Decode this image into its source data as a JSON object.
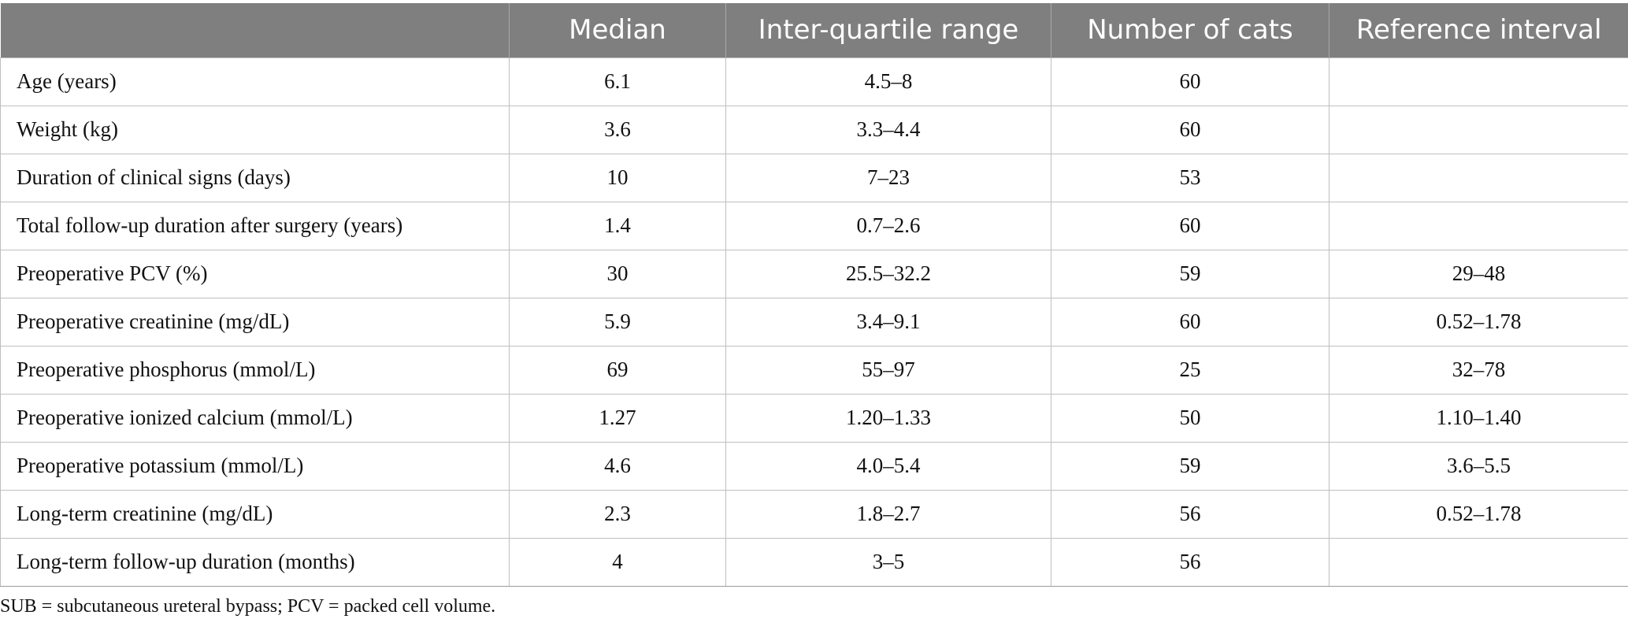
{
  "table": {
    "headers": [
      "",
      "Median",
      "Inter-quartile range",
      "Number of cats",
      "Reference interval"
    ],
    "rows": [
      [
        "Age (years)",
        "6.1",
        "4.5–8",
        "60",
        ""
      ],
      [
        "Weight (kg)",
        "3.6",
        "3.3–4.4",
        "60",
        ""
      ],
      [
        "Duration of clinical signs (days)",
        "10",
        "7–23",
        "53",
        ""
      ],
      [
        "Total follow-up duration after surgery (years)",
        "1.4",
        "0.7–2.6",
        "60",
        ""
      ],
      [
        "Preoperative PCV (%)",
        "30",
        "25.5–32.2",
        "59",
        "29–48"
      ],
      [
        "Preoperative creatinine (mg/dL)",
        "5.9",
        "3.4–9.1",
        "60",
        "0.52–1.78"
      ],
      [
        "Preoperative phosphorus (mmol/L)",
        "69",
        "55–97",
        "25",
        "32–78"
      ],
      [
        "Preoperative ionized calcium (mmol/L)",
        "1.27",
        "1.20–1.33",
        "50",
        "1.10–1.40"
      ],
      [
        "Preoperative potassium (mmol/L)",
        "4.6",
        "4.0–5.4",
        "59",
        "3.6–5.5"
      ],
      [
        "Long-term creatinine (mg/dL)",
        "2.3",
        "1.8–2.7",
        "56",
        "0.52–1.78"
      ],
      [
        "Long-term follow-up duration (months)",
        "4",
        "3–5",
        "56",
        ""
      ]
    ]
  },
  "footnote": "SUB = subcutaneous ureteral bypass; PCV = packed cell volume.",
  "colors": {
    "header_bg": "#7f7f7f",
    "header_text": "#ffffff",
    "grid": "#bfbfbf"
  }
}
